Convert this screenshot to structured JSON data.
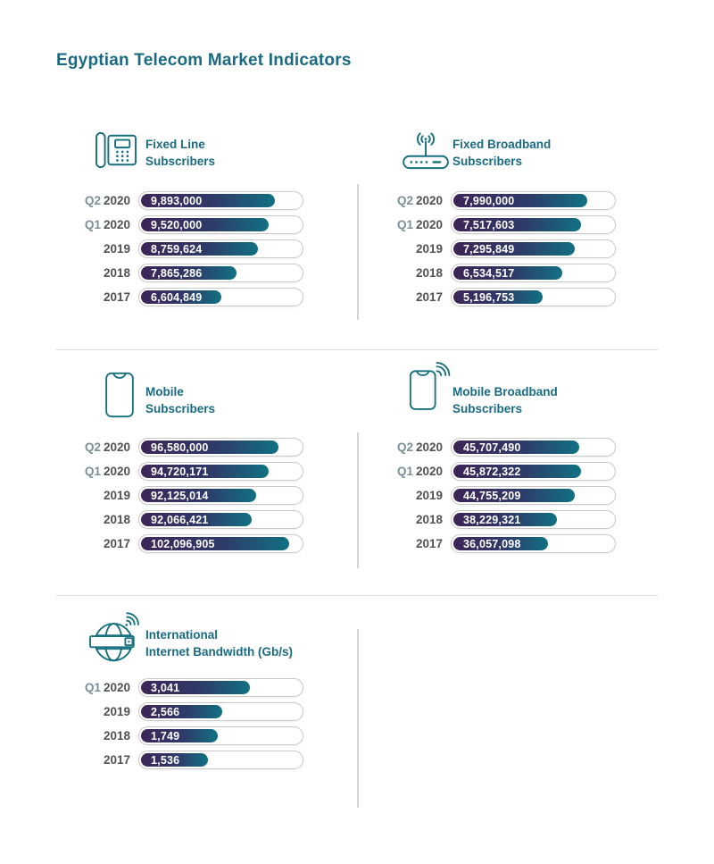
{
  "title": "Egyptian Telecom Market Indicators",
  "colors": {
    "heading_teal": "#1a6b81",
    "icon_teal": "#17707e",
    "bar_gradient_start": "#3d2557",
    "bar_gradient_end": "#117183",
    "year_label": "#515254",
    "quarter_label": "#7b8f98",
    "track_border": "#c8c8c8",
    "divider": "#d4d4d4",
    "bar_value_text": "#ffffff"
  },
  "charts": [
    {
      "icon": "desk-phone-icon",
      "title_line1": "Fixed Line",
      "title_line2": "Subscribers",
      "rows": [
        {
          "quarter": "Q2",
          "year": "2020",
          "value": "9,893,000",
          "pct": 84
        },
        {
          "quarter": "Q1",
          "year": "2020",
          "value": "9,520,000",
          "pct": 80
        },
        {
          "quarter": "",
          "year": "2019",
          "value": "8,759,624",
          "pct": 73
        },
        {
          "quarter": "",
          "year": "2018",
          "value": "7,865,286",
          "pct": 60
        },
        {
          "quarter": "",
          "year": "2017",
          "value": "6,604,849",
          "pct": 50
        }
      ]
    },
    {
      "icon": "router-signal-icon",
      "title_line1": "Fixed Broadband",
      "title_line2": "Subscribers",
      "rows": [
        {
          "quarter": "Q2",
          "year": "2020",
          "value": "7,990,000",
          "pct": 84
        },
        {
          "quarter": "Q1",
          "year": "2020",
          "value": "7,517,603",
          "pct": 80
        },
        {
          "quarter": "",
          "year": "2019",
          "value": "7,295,849",
          "pct": 76
        },
        {
          "quarter": "",
          "year": "2018",
          "value": "6,534,517",
          "pct": 68
        },
        {
          "quarter": "",
          "year": "2017",
          "value": "5,196,753",
          "pct": 56
        }
      ]
    },
    {
      "icon": "smartphone-icon",
      "title_line1": "Mobile",
      "title_line2": "Subscribers",
      "rows": [
        {
          "quarter": "Q2",
          "year": "2020",
          "value": "96,580,000",
          "pct": 86
        },
        {
          "quarter": "Q1",
          "year": "2020",
          "value": "94,720,171",
          "pct": 80
        },
        {
          "quarter": "",
          "year": "2019",
          "value": "92,125,014",
          "pct": 72
        },
        {
          "quarter": "",
          "year": "2018",
          "value": "92,066,421",
          "pct": 69
        },
        {
          "quarter": "",
          "year": "2017",
          "value": "102,096,905",
          "pct": 93
        }
      ]
    },
    {
      "icon": "smartphone-signal-icon",
      "title_line1": "Mobile Broadband",
      "title_line2": "Subscribers",
      "rows": [
        {
          "quarter": "Q2",
          "year": "2020",
          "value": "45,707,490",
          "pct": 79
        },
        {
          "quarter": "Q1",
          "year": "2020",
          "value": "45,872,322",
          "pct": 80
        },
        {
          "quarter": "",
          "year": "2019",
          "value": "44,755,209",
          "pct": 76
        },
        {
          "quarter": "",
          "year": "2018",
          "value": "38,229,321",
          "pct": 65
        },
        {
          "quarter": "",
          "year": "2017",
          "value": "36,057,098",
          "pct": 59
        }
      ]
    },
    {
      "icon": "globe-signal-icon",
      "title_line1": "International",
      "title_line2": "Internet Bandwidth (Gb/s)",
      "rows": [
        {
          "quarter": "Q1",
          "year": "2020",
          "value": "3,041",
          "pct": 68
        },
        {
          "quarter": "",
          "year": "2019",
          "value": "2,566",
          "pct": 51
        },
        {
          "quarter": "",
          "year": "2018",
          "value": "1,749",
          "pct": 48
        },
        {
          "quarter": "",
          "year": "2017",
          "value": "1,536",
          "pct": 42
        }
      ]
    }
  ],
  "chart_data": [
    {
      "type": "bar",
      "orientation": "horizontal",
      "title": "Fixed Line Subscribers",
      "categories": [
        "Q2 2020",
        "Q1 2020",
        "2019",
        "2018",
        "2017"
      ],
      "values": [
        9893000,
        9520000,
        8759624,
        7865286,
        6604849
      ],
      "data_labels": "inside-start",
      "grid": false
    },
    {
      "type": "bar",
      "orientation": "horizontal",
      "title": "Fixed Broadband Subscribers",
      "categories": [
        "Q2 2020",
        "Q1 2020",
        "2019",
        "2018",
        "2017"
      ],
      "values": [
        7990000,
        7517603,
        7295849,
        6534517,
        5196753
      ],
      "data_labels": "inside-start",
      "grid": false
    },
    {
      "type": "bar",
      "orientation": "horizontal",
      "title": "Mobile Subscribers",
      "categories": [
        "Q2 2020",
        "Q1 2020",
        "2019",
        "2018",
        "2017"
      ],
      "values": [
        96580000,
        94720171,
        92125014,
        92066421,
        102096905
      ],
      "data_labels": "inside-start",
      "grid": false
    },
    {
      "type": "bar",
      "orientation": "horizontal",
      "title": "Mobile Broadband Subscribers",
      "categories": [
        "Q2 2020",
        "Q1 2020",
        "2019",
        "2018",
        "2017"
      ],
      "values": [
        45707490,
        45872322,
        44755209,
        38229321,
        36057098
      ],
      "data_labels": "inside-start",
      "grid": false
    },
    {
      "type": "bar",
      "orientation": "horizontal",
      "title": "International Internet Bandwidth (Gb/s)",
      "categories": [
        "Q1 2020",
        "2019",
        "2018",
        "2017"
      ],
      "values": [
        3041,
        2566,
        1749,
        1536
      ],
      "data_labels": "inside-start",
      "grid": false
    }
  ]
}
